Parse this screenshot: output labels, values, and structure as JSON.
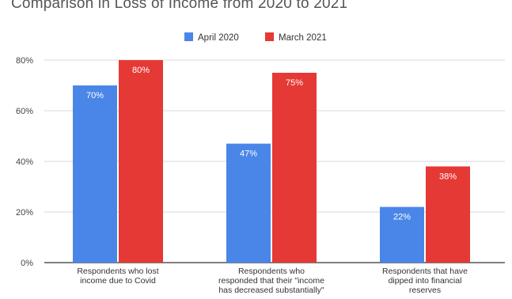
{
  "chart_data": {
    "type": "bar",
    "title": "Comparison in Loss of Income from 2020 to 2021",
    "categories": [
      [
        "Respondents who lost",
        "income due to Covid"
      ],
      [
        "Respondents who",
        "responded that their \"income",
        "has decreased substantially\""
      ],
      [
        "Respondents that have",
        "dipped into financial",
        "reserves"
      ]
    ],
    "series": [
      {
        "name": "April 2020",
        "color": "#4a86e8",
        "values": [
          70,
          47,
          22
        ],
        "labels": [
          "70%",
          "47%",
          "22%"
        ]
      },
      {
        "name": "March 2021",
        "color": "#e53935",
        "values": [
          80,
          75,
          38
        ],
        "labels": [
          "80%",
          "75%",
          "38%"
        ]
      }
    ],
    "ylim": [
      0,
      80
    ],
    "yticks": [
      0,
      20,
      40,
      60,
      80
    ],
    "ytick_labels": [
      "0%",
      "20%",
      "40%",
      "60%",
      "80%"
    ],
    "grid": true,
    "legend_position": "top-center",
    "xlabel": "",
    "ylabel": ""
  }
}
